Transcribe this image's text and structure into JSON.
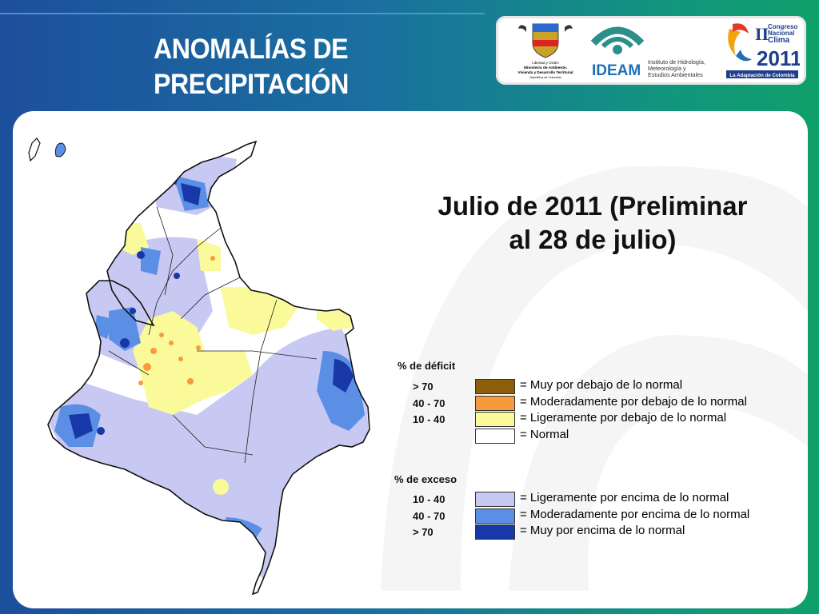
{
  "header": {
    "title_line1": "ANOMALÍAS DE",
    "title_line2": "PRECIPITACIÓN"
  },
  "logos": {
    "ministry": {
      "line1": "Libertad y Orden",
      "line2": "Ministerio de Ambiente,",
      "line3": "Vivienda y Desarrollo Territorial",
      "line4": "República de Colombia"
    },
    "ideam": {
      "acronym": "IDEAM",
      "line1": "Instituto de Hidrología,",
      "line2": "Meteorología y",
      "line3": "Estudios Ambientales"
    },
    "congreso": {
      "numeral": "II",
      "line1": "Congreso",
      "line2": "Nacional",
      "line3": "Clima",
      "year": "2011",
      "tagline": "La Adaptación de Colombia"
    }
  },
  "map": {
    "subtitle_line1": "Julio de 2011 (Preliminar",
    "subtitle_line2": "al 28 de julio)",
    "colors": {
      "deficit_gt70": "#8b5e0a",
      "deficit_40_70": "#f79a3c",
      "deficit_10_40": "#fafa9a",
      "normal": "#ffffff",
      "excess_10_40": "#c7c9f2",
      "excess_40_70": "#5b8fe6",
      "excess_gt70": "#1838a8"
    }
  },
  "legend": {
    "deficit_header": "% de déficit",
    "excess_header": "% de exceso",
    "deficit": [
      {
        "range": "> 70",
        "label": "= Muy por debajo de lo normal",
        "color": "#8b5e0a"
      },
      {
        "range": "40 -  70",
        "label": "= Moderadamente por debajo de lo normal",
        "color": "#f79a3c"
      },
      {
        "range": "10 -  40",
        "label": "= Ligeramente por debajo de lo normal",
        "color": "#fafa9a"
      },
      {
        "range": "",
        "label": "= Normal",
        "color": "#ffffff"
      }
    ],
    "excess": [
      {
        "range": "10 -  40",
        "label": "= Ligeramente por encima de lo normal",
        "color": "#c7c9f2"
      },
      {
        "range": "40 -  70",
        "label": "= Moderadamente por encima de lo normal",
        "color": "#5b8fe6"
      },
      {
        "range": "> 70",
        "label": "= Muy por encima de lo normal",
        "color": "#1838a8"
      }
    ]
  }
}
